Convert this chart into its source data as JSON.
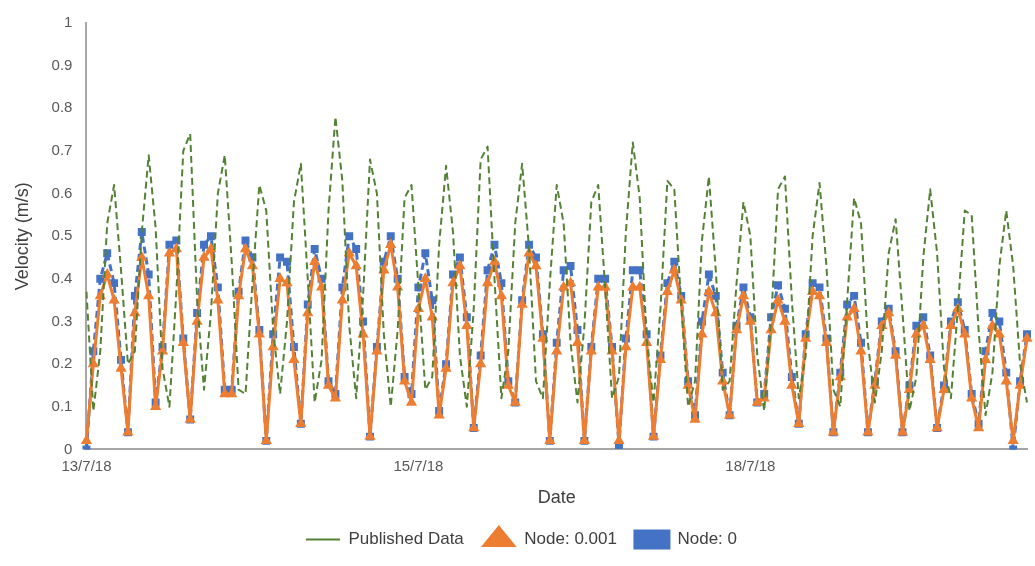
{
  "chart_data": {
    "type": "line",
    "xlabel": "Date",
    "ylabel": "Velocity (m/s)",
    "categories": [
      "13/7/18",
      null,
      null,
      null,
      null,
      null,
      null,
      null,
      null,
      null,
      null,
      null,
      null,
      null,
      null,
      null,
      null,
      null,
      null,
      null,
      null,
      null,
      null,
      null,
      null,
      null,
      null,
      null,
      null,
      null,
      null,
      null,
      null,
      null,
      null,
      null,
      null,
      null,
      null,
      null,
      null,
      null,
      null,
      null,
      null,
      null,
      null,
      null,
      "15/7/18",
      null,
      null,
      null,
      null,
      null,
      null,
      null,
      null,
      null,
      null,
      null,
      null,
      null,
      null,
      null,
      null,
      null,
      null,
      null,
      null,
      null,
      null,
      null,
      null,
      null,
      null,
      null,
      null,
      null,
      null,
      null,
      null,
      null,
      null,
      null,
      null,
      null,
      null,
      null,
      null,
      null,
      null,
      null,
      null,
      null,
      null,
      null,
      "18/7/18",
      null,
      null,
      null,
      null,
      null,
      null,
      null,
      null,
      null,
      null,
      null,
      null,
      null,
      null,
      null,
      null,
      null,
      null,
      null,
      null,
      null,
      null,
      null,
      null,
      null,
      null,
      null,
      null,
      null,
      null,
      null,
      null,
      null,
      null,
      null,
      null,
      null,
      null,
      null,
      null
    ],
    "series": [
      {
        "name": "Node: 0",
        "color": "#4472c4",
        "marker": "square",
        "line_style": "dashed",
        "values": [
          0.0,
          0.23,
          0.4,
          0.46,
          0.39,
          0.21,
          0.04,
          0.36,
          0.51,
          0.41,
          0.11,
          0.24,
          0.48,
          0.49,
          0.26,
          0.07,
          0.32,
          0.48,
          0.5,
          0.38,
          0.14,
          0.14,
          0.37,
          0.49,
          0.45,
          0.28,
          0.02,
          0.27,
          0.45,
          0.44,
          0.24,
          0.06,
          0.34,
          0.47,
          0.4,
          0.16,
          0.13,
          0.38,
          0.5,
          0.47,
          0.3,
          0.03,
          0.24,
          0.44,
          0.5,
          0.4,
          0.17,
          0.13,
          0.38,
          0.46,
          0.35,
          0.09,
          0.2,
          0.41,
          0.45,
          0.31,
          0.05,
          0.22,
          0.42,
          0.48,
          0.39,
          0.16,
          0.11,
          0.35,
          0.48,
          0.45,
          0.27,
          0.02,
          0.25,
          0.42,
          0.43,
          0.28,
          0.02,
          0.24,
          0.4,
          0.4,
          0.24,
          0.01,
          0.26,
          0.42,
          0.42,
          0.27,
          0.03,
          0.22,
          0.39,
          0.44,
          0.36,
          0.16,
          0.08,
          0.3,
          0.41,
          0.36,
          0.18,
          0.08,
          0.29,
          0.38,
          0.31,
          0.11,
          0.13,
          0.31,
          0.385,
          0.33,
          0.17,
          0.06,
          0.27,
          0.39,
          0.38,
          0.26,
          0.04,
          0.18,
          0.34,
          0.36,
          0.25,
          0.04,
          0.16,
          0.3,
          0.33,
          0.23,
          0.04,
          0.15,
          0.29,
          0.31,
          0.22,
          0.05,
          0.15,
          0.3,
          0.345,
          0.28,
          0.13,
          0.06,
          0.23,
          0.32,
          0.3,
          0.18,
          0.0,
          0.16,
          0.27
        ]
      },
      {
        "name": "Node: 0.001",
        "color": "#ed7d31",
        "marker": "triangle",
        "line_style": "solid",
        "values": [
          0.02,
          0.2,
          0.36,
          0.41,
          0.35,
          0.19,
          0.04,
          0.32,
          0.45,
          0.36,
          0.1,
          0.23,
          0.46,
          0.47,
          0.25,
          0.07,
          0.3,
          0.45,
          0.47,
          0.35,
          0.13,
          0.13,
          0.36,
          0.47,
          0.43,
          0.27,
          0.02,
          0.24,
          0.4,
          0.39,
          0.21,
          0.06,
          0.32,
          0.44,
          0.38,
          0.15,
          0.12,
          0.35,
          0.46,
          0.43,
          0.27,
          0.03,
          0.23,
          0.42,
          0.48,
          0.38,
          0.16,
          0.11,
          0.33,
          0.4,
          0.31,
          0.08,
          0.19,
          0.39,
          0.43,
          0.29,
          0.05,
          0.2,
          0.39,
          0.44,
          0.36,
          0.15,
          0.11,
          0.34,
          0.46,
          0.43,
          0.26,
          0.02,
          0.23,
          0.38,
          0.39,
          0.25,
          0.02,
          0.23,
          0.38,
          0.38,
          0.23,
          0.02,
          0.24,
          0.38,
          0.38,
          0.25,
          0.03,
          0.21,
          0.37,
          0.42,
          0.35,
          0.15,
          0.07,
          0.27,
          0.37,
          0.32,
          0.16,
          0.08,
          0.28,
          0.36,
          0.3,
          0.11,
          0.12,
          0.28,
          0.35,
          0.3,
          0.15,
          0.06,
          0.26,
          0.37,
          0.36,
          0.25,
          0.04,
          0.17,
          0.31,
          0.33,
          0.23,
          0.04,
          0.15,
          0.29,
          0.32,
          0.22,
          0.04,
          0.14,
          0.27,
          0.29,
          0.21,
          0.05,
          0.14,
          0.29,
          0.33,
          0.27,
          0.12,
          0.05,
          0.21,
          0.29,
          0.27,
          0.16,
          0.02,
          0.15,
          0.26
        ]
      },
      {
        "name": "Published Data",
        "color": "#548235",
        "marker": "none",
        "line_style": "dashed",
        "values": [
          0.37,
          0.09,
          0.23,
          0.53,
          0.62,
          0.42,
          0.2,
          0.23,
          0.51,
          0.69,
          0.52,
          0.19,
          0.1,
          0.37,
          0.7,
          0.74,
          0.35,
          0.14,
          0.32,
          0.6,
          0.69,
          0.44,
          0.14,
          0.13,
          0.39,
          0.62,
          0.56,
          0.28,
          0.13,
          0.3,
          0.58,
          0.67,
          0.4,
          0.11,
          0.21,
          0.56,
          0.78,
          0.63,
          0.29,
          0.12,
          0.36,
          0.68,
          0.6,
          0.27,
          0.1,
          0.28,
          0.59,
          0.62,
          0.38,
          0.14,
          0.17,
          0.48,
          0.665,
          0.51,
          0.22,
          0.1,
          0.33,
          0.68,
          0.71,
          0.4,
          0.12,
          0.23,
          0.53,
          0.67,
          0.47,
          0.16,
          0.12,
          0.39,
          0.62,
          0.53,
          0.25,
          0.11,
          0.29,
          0.58,
          0.62,
          0.38,
          0.12,
          0.17,
          0.51,
          0.72,
          0.59,
          0.26,
          0.11,
          0.33,
          0.63,
          0.61,
          0.34,
          0.1,
          0.16,
          0.49,
          0.64,
          0.42,
          0.14,
          0.16,
          0.39,
          0.58,
          0.5,
          0.22,
          0.09,
          0.3,
          0.61,
          0.64,
          0.35,
          0.12,
          0.22,
          0.5,
          0.625,
          0.43,
          0.14,
          0.1,
          0.35,
          0.59,
          0.53,
          0.25,
          0.11,
          0.23,
          0.46,
          0.54,
          0.32,
          0.09,
          0.17,
          0.45,
          0.61,
          0.46,
          0.19,
          0.12,
          0.33,
          0.56,
          0.55,
          0.28,
          0.08,
          0.18,
          0.43,
          0.56,
          0.43,
          0.2,
          0.11
        ]
      }
    ],
    "ylim": [
      0,
      1
    ],
    "yticks": [
      0,
      0.1,
      0.2,
      0.3,
      0.4,
      0.5,
      0.6,
      0.7,
      0.8,
      0.9,
      1
    ],
    "grid": false,
    "legend": "bottom"
  }
}
